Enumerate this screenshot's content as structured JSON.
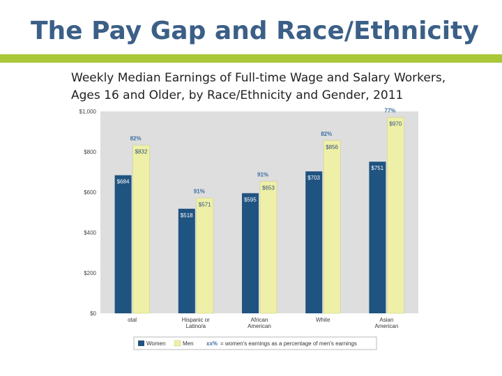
{
  "slide": {
    "title": "The Pay Gap and Race/Ethnicity",
    "subtitle_line1": "Weekly Median Earnings of Full-time Wage and Salary Workers,",
    "subtitle_line2": "Ages 16 and Older, by Race/Ethnicity and Gender, 2011"
  },
  "colors": {
    "women": "#1f5380",
    "men": "#eef0a8",
    "accent": "#a9c736",
    "title": "#3b5f87",
    "plot_bg": "#dedede",
    "label": "#2f4f7a",
    "pct": "#3c6ea0"
  },
  "chart_data": {
    "type": "bar",
    "categories": [
      "otal",
      "Hispanic or Latino/a",
      "African American",
      "White",
      "Asian American"
    ],
    "series": [
      {
        "name": "Women",
        "values": [
          684,
          518,
          595,
          703,
          751
        ],
        "labels": [
          "$684",
          "$518",
          "$595",
          "$703",
          "$751"
        ]
      },
      {
        "name": "Men",
        "values": [
          832,
          571,
          653,
          856,
          970
        ],
        "labels": [
          "$832",
          "$571",
          "$653",
          "$856",
          "$970"
        ]
      }
    ],
    "percent_labels": [
      "82%",
      "91%",
      "91%",
      "82%",
      "77%"
    ],
    "yticks": [
      0,
      200,
      400,
      600,
      800,
      1000
    ],
    "ytick_labels": [
      "$0",
      "$200",
      "$400",
      "$600",
      "$800",
      "$1,000"
    ],
    "ylim": [
      0,
      1000
    ],
    "legend": {
      "position": "bottom",
      "women": "Women",
      "men": "Men",
      "pct_marker": "xx%",
      "pct_text": "= women's earnings as a percentage of men's earnings"
    },
    "grid": false
  }
}
